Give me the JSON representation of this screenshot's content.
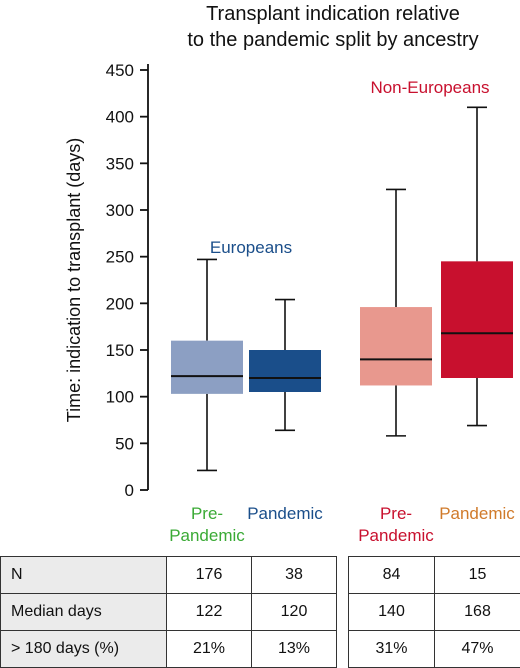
{
  "chart_data": {
    "type": "box",
    "title": [
      "Transplant indication relative",
      "to the pandemic split by ancestry"
    ],
    "ylabel": "Time: indication to transplant (days)",
    "ylim": [
      0,
      450
    ],
    "yticks": [
      0,
      50,
      100,
      150,
      200,
      250,
      300,
      350,
      400,
      450
    ],
    "groups": [
      {
        "name": "Europeans",
        "color": "#1a4e8a"
      },
      {
        "name": "Non-Europeans",
        "color": "#c8102e"
      }
    ],
    "boxes": [
      {
        "group": "Europeans",
        "label": [
          "Pre-",
          "Pandemic"
        ],
        "label_color": "#3aaa35",
        "color": "#8c9fc3",
        "min": 21,
        "q1": 103,
        "median": 122,
        "q3": 160,
        "max": 247
      },
      {
        "group": "Europeans",
        "label": [
          "Pandemic"
        ],
        "label_color": "#1a4e8a",
        "color": "#1a4e8a",
        "min": 64,
        "q1": 105,
        "median": 120,
        "q3": 150,
        "max": 204
      },
      {
        "group": "Non-Europeans",
        "label": [
          "Pre-",
          "Pandemic"
        ],
        "label_color": "#c8102e",
        "color": "#e8988e",
        "min": 58,
        "q1": 112,
        "median": 140,
        "q3": 196,
        "max": 322
      },
      {
        "group": "Non-Europeans",
        "label": [
          "Pandemic"
        ],
        "label_color": "#d07a2a",
        "color": "#c8102e",
        "min": 69,
        "q1": 120,
        "median": 168,
        "q3": 245,
        "max": 410
      }
    ]
  },
  "table": {
    "row_labels": [
      "N",
      "Median days",
      "> 180 days (%)"
    ],
    "left": [
      [
        "176",
        "38"
      ],
      [
        "122",
        "120"
      ],
      [
        "21%",
        "13%"
      ]
    ],
    "right": [
      [
        "84",
        "15"
      ],
      [
        "140",
        "168"
      ],
      [
        "31%",
        "47%"
      ]
    ]
  }
}
